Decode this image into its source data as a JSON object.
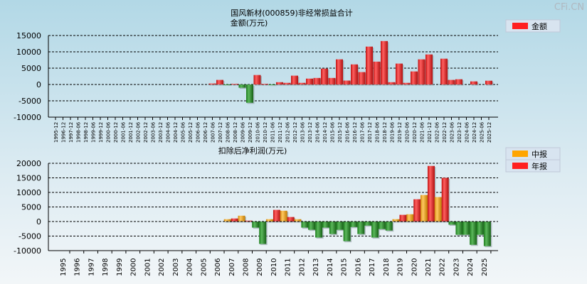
{
  "watermark": "CFi.CN",
  "chart_data": [
    {
      "type": "bar",
      "title": "国风新材(000859)非经常损益合计",
      "ylabel": "金额(万元)",
      "ylim": [
        -10000,
        15000
      ],
      "yticks": [
        15000,
        10000,
        5000,
        0,
        -5000,
        -10000
      ],
      "legend": {
        "position": "top-right",
        "entries": [
          {
            "label": "金额",
            "color": "#ff2020"
          }
        ]
      },
      "categories": [
        "1995-12",
        "1996-12",
        "1997-12",
        "1998-06",
        "1998-12",
        "1999-06",
        "1999-12",
        "2000-06",
        "2000-12",
        "2001-06",
        "2001-12",
        "2002-06",
        "2002-12",
        "2003-06",
        "2003-12",
        "2004-06",
        "2004-12",
        "2005-06",
        "2005-12",
        "2006-06",
        "2006-12",
        "2007-06",
        "2007-12",
        "2008-06",
        "2008-12",
        "2009-06",
        "2009-12",
        "2010-06",
        "2010-12",
        "2011-06",
        "2011-12",
        "2012-06",
        "2012-12",
        "2013-06",
        "2013-12",
        "2014-06",
        "2014-12",
        "2015-06",
        "2015-12",
        "2016-06",
        "2016-12",
        "2017-06",
        "2017-12",
        "2018-06",
        "2018-12",
        "2019-06",
        "2019-12",
        "2020-06",
        "2020-12",
        "2021-06",
        "2021-12",
        "2022-06",
        "2022-12",
        "2023-06",
        "2023-12",
        "2024-06",
        "2024-12",
        "2025-06",
        "2025-12"
      ],
      "values": [
        null,
        null,
        null,
        null,
        null,
        null,
        null,
        null,
        null,
        null,
        null,
        null,
        null,
        null,
        null,
        null,
        null,
        null,
        null,
        null,
        null,
        300,
        1400,
        -100,
        200,
        -1000,
        -5600,
        2900,
        200,
        -150,
        700,
        500,
        2700,
        500,
        1800,
        2000,
        4850,
        2000,
        7700,
        1200,
        6150,
        3800,
        11600,
        7000,
        13300,
        700,
        6400,
        500,
        4000,
        7700,
        9200,
        0,
        7900,
        1400,
        1600,
        0,
        950,
        0,
        1150
      ]
    },
    {
      "type": "bar",
      "title": "扣除后净利润(万元)",
      "ylim": [
        -10000,
        20000
      ],
      "yticks": [
        20000,
        15000,
        10000,
        5000,
        0,
        -5000,
        -10000
      ],
      "legend": {
        "position": "top-right",
        "entries": [
          {
            "label": "中报",
            "color": "#ffa500"
          },
          {
            "label": "年报",
            "color": "#ff2020"
          }
        ]
      },
      "categories": [
        "1995",
        "1996",
        "1997",
        "1998",
        "1999",
        "2000",
        "2001",
        "2002",
        "2003",
        "2004",
        "2005",
        "2006",
        "2007",
        "2008",
        "2009",
        "2010",
        "2011",
        "2012",
        "2013",
        "2014",
        "2015",
        "2016",
        "2017",
        "2018",
        "2019",
        "2020",
        "2021",
        "2022",
        "2023",
        "2024",
        "2025"
      ],
      "series": [
        {
          "name": "中报",
          "values": [
            null,
            null,
            null,
            null,
            null,
            null,
            null,
            null,
            null,
            null,
            null,
            null,
            800,
            2000,
            -2100,
            800,
            3700,
            800,
            -2850,
            -2100,
            -2850,
            -1900,
            -1400,
            -2600,
            800,
            2500,
            9100,
            8400,
            -1100,
            -4550,
            -4550
          ]
        },
        {
          "name": "年报",
          "values": [
            null,
            null,
            null,
            null,
            null,
            null,
            null,
            null,
            null,
            null,
            null,
            null,
            1050,
            300,
            -7700,
            4000,
            1550,
            -2100,
            -5500,
            -4300,
            -6750,
            -4300,
            -5500,
            -3100,
            2300,
            7650,
            19100,
            15000,
            -4550,
            -8000,
            -8450
          ]
        }
      ]
    }
  ]
}
